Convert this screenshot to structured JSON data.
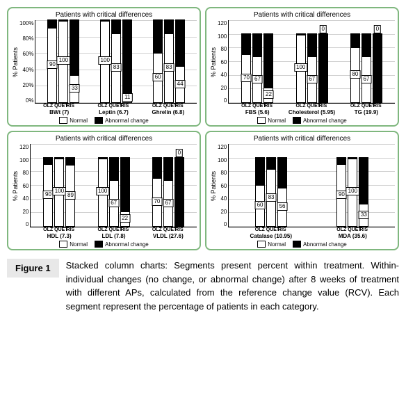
{
  "panels": [
    {
      "title": "Patients with critical differences",
      "ylabel": "% Patients",
      "ymax": 100,
      "ytick_step": 20,
      "ytick_suffix": "%",
      "groups": [
        {
          "category": "BWt (7)",
          "bars": [
            {
              "drug": "OLZ",
              "normal": 90,
              "abnormal": 10,
              "label": "90"
            },
            {
              "drug": "QUET",
              "normal": 100,
              "abnormal": 0,
              "label": "100"
            },
            {
              "drug": "RIS",
              "normal": 33,
              "abnormal": 67,
              "label": "33"
            }
          ]
        },
        {
          "category": "Leptin (6.7)",
          "bars": [
            {
              "drug": "OLZ",
              "normal": 100,
              "abnormal": 0,
              "label": "100"
            },
            {
              "drug": "QUET",
              "normal": 83,
              "abnormal": 17,
              "label": "83"
            },
            {
              "drug": "RIS",
              "normal": 11,
              "abnormal": 89,
              "label": "11"
            }
          ]
        },
        {
          "category": "Ghrelin (6.8)",
          "bars": [
            {
              "drug": "OLZ",
              "normal": 60,
              "abnormal": 40,
              "label": "60"
            },
            {
              "drug": "QUET",
              "normal": 83,
              "abnormal": 17,
              "label": "83"
            },
            {
              "drug": "RIS",
              "normal": 44,
              "abnormal": 56,
              "label": "44"
            }
          ]
        }
      ]
    },
    {
      "title": "Patients with critical differences",
      "ylabel": "% Patients",
      "ymax": 120,
      "ytick_step": 20,
      "ytick_suffix": "",
      "groups": [
        {
          "category": "FBS (5.6)",
          "bars": [
            {
              "drug": "OLZ",
              "normal": 70,
              "abnormal": 30,
              "label": "70"
            },
            {
              "drug": "QUET",
              "normal": 67,
              "abnormal": 33,
              "label": "67"
            },
            {
              "drug": "RIS",
              "normal": 22,
              "abnormal": 78,
              "label": "22"
            }
          ]
        },
        {
          "category": "Cholesterol (5.95)",
          "bars": [
            {
              "drug": "OLZ",
              "normal": 100,
              "abnormal": 0,
              "label": "100"
            },
            {
              "drug": "QUET",
              "normal": 67,
              "abnormal": 33,
              "label": "67"
            },
            {
              "drug": "RIS",
              "normal": 0,
              "abnormal": 100,
              "label": "0",
              "label_top": true
            }
          ]
        },
        {
          "category": "TG (19.9)",
          "bars": [
            {
              "drug": "OLZ",
              "normal": 80,
              "abnormal": 20,
              "label": "80"
            },
            {
              "drug": "QUET",
              "normal": 67,
              "abnormal": 33,
              "label": "67"
            },
            {
              "drug": "RIS",
              "normal": 0,
              "abnormal": 100,
              "label": "0",
              "label_top": true
            }
          ]
        }
      ]
    },
    {
      "title": "Patients with critical differences",
      "ylabel": "% Patients",
      "ymax": 120,
      "ytick_step": 20,
      "ytick_suffix": "",
      "groups": [
        {
          "category": "HDL (7.3)",
          "bars": [
            {
              "drug": "OLZ",
              "normal": 90,
              "abnormal": 10,
              "label": "90"
            },
            {
              "drug": "QUET",
              "normal": 100,
              "abnormal": 0,
              "label": "100"
            },
            {
              "drug": "RIS",
              "normal": 89,
              "abnormal": 11,
              "label": "89"
            }
          ]
        },
        {
          "category": "LDL (7.8)",
          "bars": [
            {
              "drug": "OLZ",
              "normal": 100,
              "abnormal": 0,
              "label": "100"
            },
            {
              "drug": "QUET",
              "normal": 67,
              "abnormal": 33,
              "label": "67"
            },
            {
              "drug": "RIS",
              "normal": 22,
              "abnormal": 78,
              "label": "22"
            }
          ]
        },
        {
          "category": "VLDL (27.6)",
          "bars": [
            {
              "drug": "OLZ",
              "normal": 70,
              "abnormal": 30,
              "label": "70"
            },
            {
              "drug": "QUET",
              "normal": 67,
              "abnormal": 33,
              "label": "67"
            },
            {
              "drug": "RIS",
              "normal": 0,
              "abnormal": 100,
              "label": "0",
              "label_top": true
            }
          ]
        }
      ]
    },
    {
      "title": "Patients with critical differences",
      "ylabel": "% Patients",
      "ymax": 120,
      "ytick_step": 20,
      "ytick_suffix": "",
      "groups": [
        {
          "category": "Catalase (10.95)",
          "bars": [
            {
              "drug": "OLZ",
              "normal": 60,
              "abnormal": 40,
              "label": "60"
            },
            {
              "drug": "QUET",
              "normal": 83,
              "abnormal": 17,
              "label": "83"
            },
            {
              "drug": "RIS",
              "normal": 56,
              "abnormal": 44,
              "label": "56"
            }
          ]
        },
        {
          "category": "MDA (35.6)",
          "bars": [
            {
              "drug": "OLZ",
              "normal": 90,
              "abnormal": 10,
              "label": "90"
            },
            {
              "drug": "QUET",
              "normal": 100,
              "abnormal": 0,
              "label": "100"
            },
            {
              "drug": "RIS",
              "normal": 33,
              "abnormal": 67,
              "label": "33"
            }
          ]
        }
      ]
    }
  ],
  "legend": {
    "normal": "Normal",
    "abnormal": "Abnormal change"
  },
  "colors": {
    "normal": "#ffffff",
    "abnormal": "#000000",
    "border": "#7fb77e",
    "grid": "#d0d0d0"
  },
  "figure_label": "Figure 1",
  "caption": "Stacked column charts: Segments present percent within treatment. Within-individual changes (no change, or abnormal change) after 8 weeks of treatment with different APs, calculated from the reference change value (RCV). Each segment represent the percentage of patients in each category."
}
